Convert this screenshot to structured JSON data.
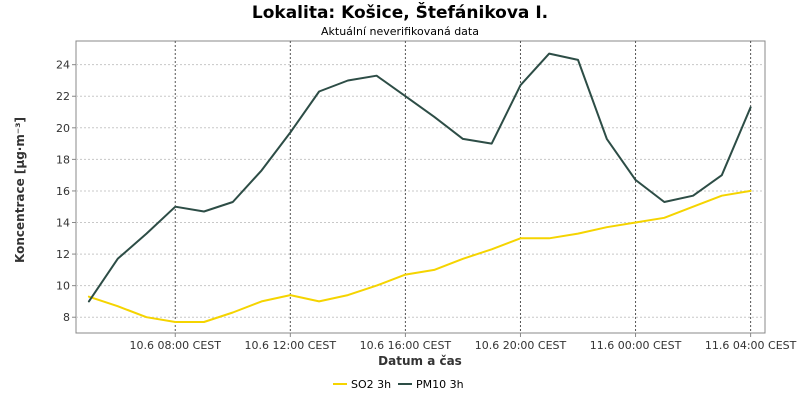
{
  "chart_data": {
    "type": "line",
    "title": "Lokalita: Košice, Štefánikova I.",
    "subtitle": "Aktuální neverifikovaná data",
    "xlabel": "Datum a čas",
    "ylabel": "Koncentrace [µg·m⁻³]",
    "x_ticks": [
      {
        "x": 3,
        "label": "10.6 08:00 CEST"
      },
      {
        "x": 7,
        "label": "10.6 12:00 CEST"
      },
      {
        "x": 11,
        "label": "10.6 16:00 CEST"
      },
      {
        "x": 15,
        "label": "10.6 20:00 CEST"
      },
      {
        "x": 19,
        "label": "11.6 00:00 CEST"
      },
      {
        "x": 23,
        "label": "11.6 04:00 CEST"
      }
    ],
    "xlim": [
      -0.45,
      23.5
    ],
    "ylim": [
      7,
      25.5
    ],
    "y_ticks": [
      8,
      10,
      12,
      14,
      16,
      18,
      20,
      22,
      24
    ],
    "grid": true,
    "legend": "bottom-center",
    "x": [
      0,
      1,
      2,
      3,
      4,
      5,
      6,
      7,
      8,
      9,
      10,
      11,
      12,
      13,
      14,
      15,
      16,
      17,
      18,
      19,
      20,
      21,
      22,
      23
    ],
    "series": [
      {
        "name": "SO2 3h",
        "color": "#f5d400",
        "values": [
          9.3,
          8.7,
          8.0,
          7.7,
          7.7,
          8.3,
          9.0,
          9.4,
          9.0,
          9.4,
          10.0,
          10.7,
          11.0,
          11.7,
          12.3,
          13.0,
          13.0,
          13.3,
          13.7,
          14.0,
          14.3,
          15.0,
          15.7,
          16.0
        ]
      },
      {
        "name": "PM10 3h",
        "color": "#2d4d46",
        "values": [
          9.0,
          11.7,
          13.3,
          15.0,
          14.7,
          15.3,
          17.3,
          19.7,
          22.3,
          23.0,
          23.3,
          22.0,
          20.7,
          19.3,
          19.0,
          22.7,
          24.7,
          24.3,
          19.3,
          16.7,
          15.3,
          15.7,
          17.0,
          21.3
        ]
      }
    ]
  }
}
